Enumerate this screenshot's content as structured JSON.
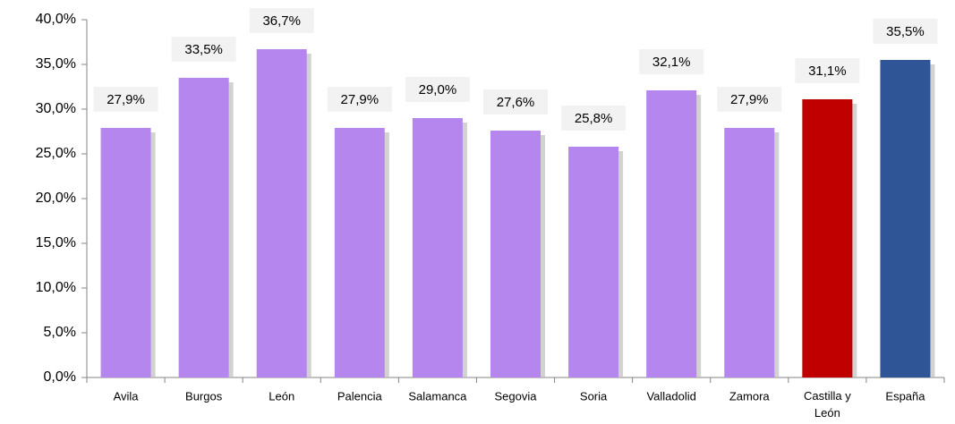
{
  "chart_data": {
    "type": "bar",
    "categories": [
      "Avila",
      "Burgos",
      "León",
      "Palencia",
      "Salamanca",
      "Segovia",
      "Soria",
      "Valladolid",
      "Zamora",
      "Castilla y León",
      "España"
    ],
    "values": [
      27.9,
      33.5,
      36.7,
      27.9,
      29.0,
      27.6,
      25.8,
      32.1,
      27.9,
      31.1,
      35.5
    ],
    "value_labels": [
      "27,9%",
      "33,5%",
      "36,7%",
      "27,9%",
      "29,0%",
      "27,6%",
      "25,8%",
      "32,1%",
      "27,9%",
      "31,1%",
      "35,5%"
    ],
    "colors": [
      "#b586ee",
      "#b586ee",
      "#b586ee",
      "#b586ee",
      "#b586ee",
      "#b586ee",
      "#b586ee",
      "#b586ee",
      "#b586ee",
      "#c00000",
      "#2f5597"
    ],
    "ylim": [
      0,
      40
    ],
    "yticks": [
      {
        "value": 0,
        "label": "0,0%"
      },
      {
        "value": 5,
        "label": "5,0%"
      },
      {
        "value": 10,
        "label": "10,0%"
      },
      {
        "value": 15,
        "label": "15,0%"
      },
      {
        "value": 20,
        "label": "20,0%"
      },
      {
        "value": 25,
        "label": "25,0%"
      },
      {
        "value": 30,
        "label": "30,0%"
      },
      {
        "value": 35,
        "label": "35,0%"
      },
      {
        "value": 40,
        "label": "40,0%"
      }
    ],
    "grid": false
  }
}
